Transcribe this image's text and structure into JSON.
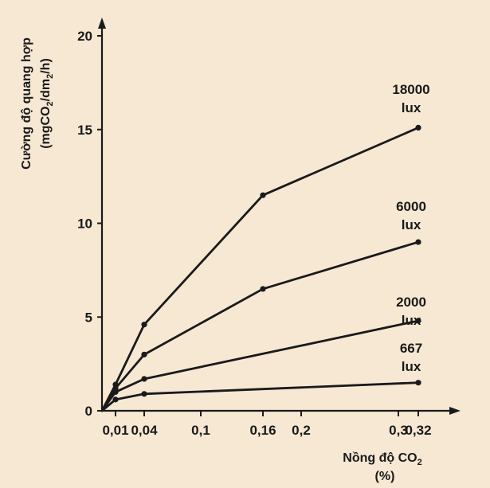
{
  "chart_data": {
    "type": "line",
    "ylabel_line1": "Cường độ quang hợp",
    "ylabel_line2_parts": [
      "(mgCO",
      "2",
      "/dm",
      "2",
      "/h)"
    ],
    "xlabel_line1_parts": [
      "Nồng độ CO",
      "2"
    ],
    "xlabel_line2": "(%)",
    "ylim": [
      0,
      20
    ],
    "yticks": [
      0,
      5,
      10,
      15,
      20
    ],
    "ytick_labels": [
      "0",
      "5",
      "10",
      "15",
      "20"
    ],
    "xticks": [
      0.01,
      0.04,
      0.1,
      0.16,
      0.2,
      0.3,
      0.32
    ],
    "xtick_labels": [
      "0,01",
      "0,04",
      "0,1",
      "0,16",
      "0,2",
      "0,3",
      "0,32"
    ],
    "line_color": "#1a1a1a",
    "series": [
      {
        "name_line1": "18000",
        "name_line2": "lux",
        "x": [
          0,
          0.01,
          0.04,
          0.16,
          0.32
        ],
        "y": [
          0,
          1.4,
          4.6,
          11.5,
          15.1
        ]
      },
      {
        "name_line1": "6000",
        "name_line2": "lux",
        "x": [
          0,
          0.01,
          0.04,
          0.16,
          0.32
        ],
        "y": [
          0,
          1.2,
          3.0,
          6.5,
          9.0
        ]
      },
      {
        "name_line1": "2000",
        "name_line2": "lux",
        "x": [
          0,
          0.01,
          0.04,
          0.32
        ],
        "y": [
          0,
          1.0,
          1.7,
          4.8
        ]
      },
      {
        "name_line1": "667",
        "name_line2": "lux",
        "x": [
          0,
          0.01,
          0.04,
          0.32
        ],
        "y": [
          0,
          0.6,
          0.9,
          1.5
        ]
      }
    ]
  }
}
